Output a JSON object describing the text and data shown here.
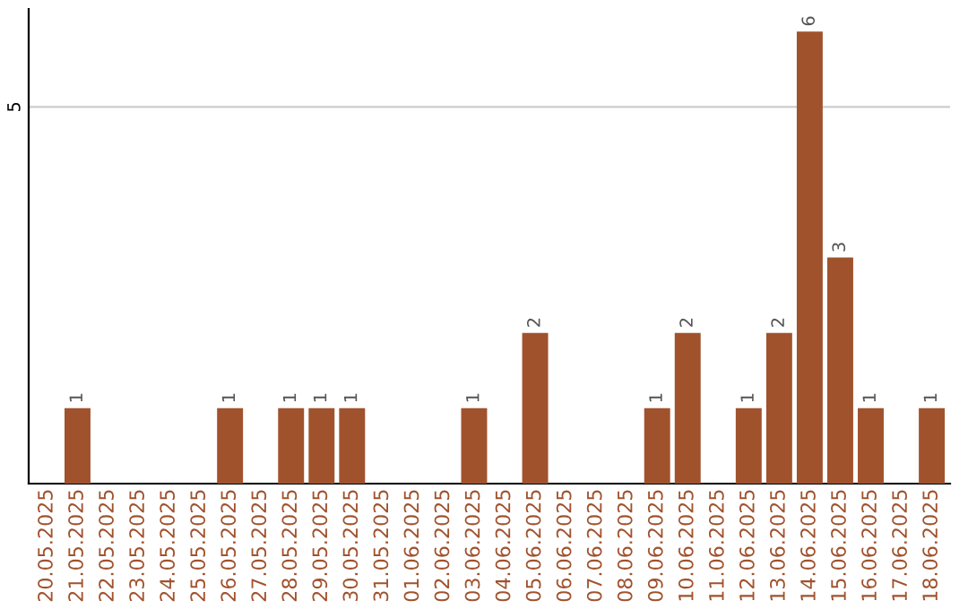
{
  "chart_data": {
    "type": "bar",
    "categories": [
      "20.05.2025",
      "21.05.2025",
      "22.05.2025",
      "23.05.2025",
      "24.05.2025",
      "25.05.2025",
      "26.05.2025",
      "27.05.2025",
      "28.05.2025",
      "29.05.2025",
      "30.05.2025",
      "31.05.2025",
      "01.06.2025",
      "02.06.2025",
      "03.06.2025",
      "04.06.2025",
      "05.06.2025",
      "06.06.2025",
      "07.06.2025",
      "08.06.2025",
      "09.06.2025",
      "10.06.2025",
      "11.06.2025",
      "12.06.2025",
      "13.06.2025",
      "14.06.2025",
      "15.06.2025",
      "16.06.2025",
      "17.06.2025",
      "18.06.2025"
    ],
    "values": [
      0,
      1,
      0,
      0,
      0,
      0,
      1,
      0,
      1,
      1,
      1,
      0,
      0,
      0,
      1,
      0,
      2,
      0,
      0,
      0,
      1,
      2,
      0,
      1,
      2,
      6,
      3,
      1,
      0,
      1
    ],
    "value_labels": [
      null,
      "1",
      null,
      null,
      null,
      null,
      "1",
      null,
      "1",
      "1",
      "1",
      null,
      null,
      null,
      "1",
      null,
      "2",
      null,
      null,
      null,
      "1",
      "2",
      null,
      "1",
      "2",
      "6",
      "3",
      "1",
      null,
      "1"
    ],
    "color": "#a0522d",
    "ylim": [
      0,
      6.3
    ],
    "yticks": [
      5
    ],
    "grid": "y"
  }
}
